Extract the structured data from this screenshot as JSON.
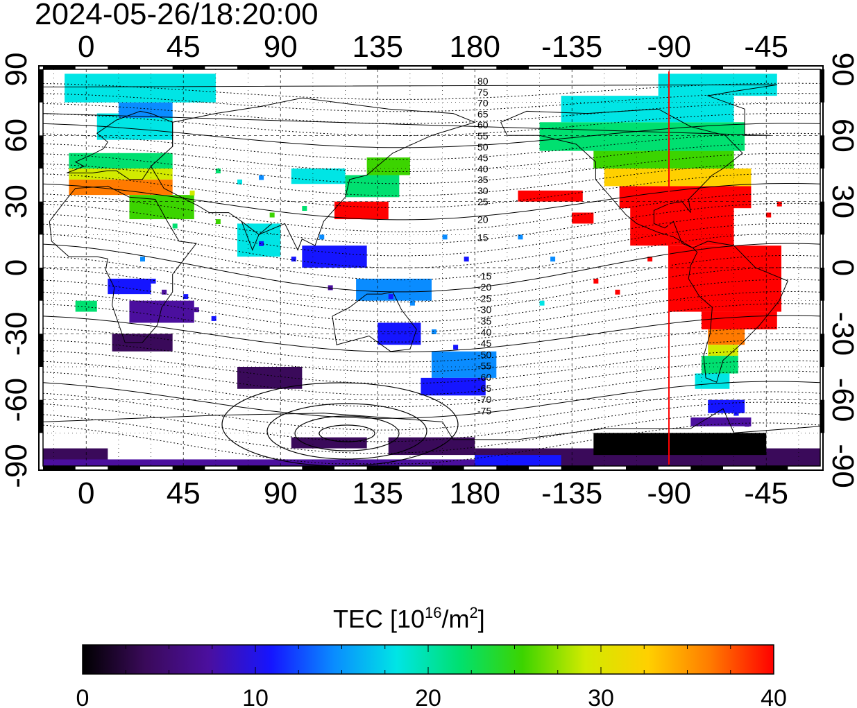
{
  "timestamp": "2024-05-26/18:20:00",
  "map": {
    "x_tick_labels": [
      "0",
      "45",
      "90",
      "135",
      "180",
      "-135",
      "-90",
      "-45"
    ],
    "y_tick_labels": [
      "90",
      "60",
      "30",
      "0",
      "-30",
      "-60",
      "-90"
    ],
    "north_contours": [
      "80",
      "75",
      "70",
      "65",
      "60",
      "55",
      "50",
      "45",
      "40",
      "35",
      "30",
      "25",
      "20",
      "15"
    ],
    "south_contours": [
      "-15",
      "-20",
      "-25",
      "-30",
      "-35",
      "-40",
      "-45",
      "-50",
      "-55",
      "-60",
      "-65",
      "-70",
      "-75"
    ],
    "marker_line_color": "#ff0000"
  },
  "colorbar": {
    "title_main": "TEC  [10",
    "title_exp1": "16",
    "title_mid": "/m",
    "title_exp2": "2",
    "title_end": "]",
    "labels": [
      "0",
      "10",
      "20",
      "30",
      "40"
    ],
    "stops": [
      "#000000",
      "#3a0a5a",
      "#4b0f9e",
      "#1515ff",
      "#0a8cff",
      "#00e5e5",
      "#00e070",
      "#3cd400",
      "#d2ea00",
      "#ffd000",
      "#ff7a00",
      "#ff0000"
    ]
  }
}
